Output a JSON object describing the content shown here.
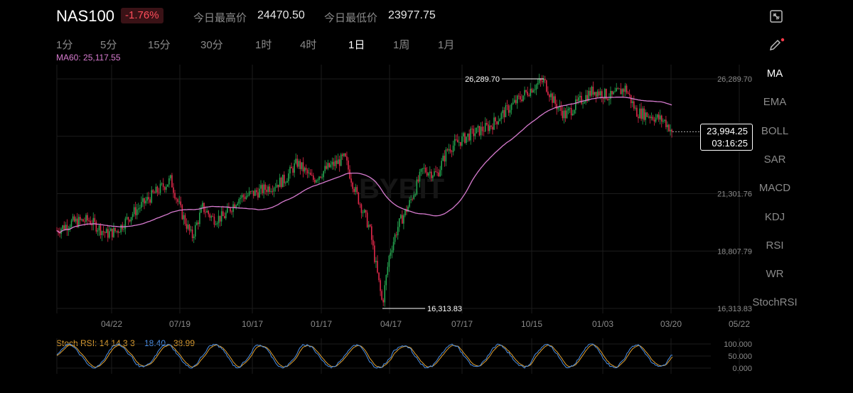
{
  "header": {
    "symbol": "NAS100",
    "change": "-1.76%",
    "high_label": "今日最高价",
    "high_value": "24470.50",
    "low_label": "今日最低价",
    "low_value": "23977.75"
  },
  "timeframes": [
    {
      "label": "1分",
      "active": false
    },
    {
      "label": "5分",
      "active": false
    },
    {
      "label": "15分",
      "active": false
    },
    {
      "label": "30分",
      "active": false
    },
    {
      "label": "1时",
      "active": false
    },
    {
      "label": "4时",
      "active": false
    },
    {
      "label": "1日",
      "active": true
    },
    {
      "label": "1周",
      "active": false
    },
    {
      "label": "1月",
      "active": false
    }
  ],
  "ma_label": "MA60: 25,117.55",
  "indicators": [
    {
      "label": "MA",
      "active": true
    },
    {
      "label": "EMA",
      "active": false
    },
    {
      "label": "BOLL",
      "active": false
    },
    {
      "label": "SAR",
      "active": false
    },
    {
      "label": "MACD",
      "active": false
    },
    {
      "label": "KDJ",
      "active": false
    },
    {
      "label": "RSI",
      "active": false
    },
    {
      "label": "WR",
      "active": false
    },
    {
      "label": "StochRSI",
      "active": false
    }
  ],
  "price_tag": {
    "price": "23,994.25",
    "countdown": "03:16:25"
  },
  "watermark": "BYBIT",
  "chart_data": {
    "type": "candlestick",
    "y_ticks": [
      "26,289.70",
      "21,301.76",
      "18,807.79",
      "16,313.83"
    ],
    "x_ticks": [
      "04/22",
      "07/19",
      "10/17",
      "01/17",
      "04/17",
      "07/17",
      "10/15",
      "01/03",
      "03/20",
      "05/22"
    ],
    "ylim": [
      16313.83,
      26289.7
    ],
    "high_marker": "26,289.70",
    "low_marker": "16,313.83",
    "last_price": 23994.25,
    "ma_period": 60,
    "colors": {
      "up": "#25a750",
      "down": "#e0294a",
      "ma": "#d77bcf",
      "grid": "#1c1c1c"
    }
  },
  "stoch_rsi": {
    "label": "Stoch RSI: 14 14 3 3",
    "k_value": "18.40",
    "d_value": "38.99",
    "y_ticks": [
      "100.000",
      "50.000",
      "0.000"
    ],
    "k_color": "#4a8fe7",
    "d_color": "#e0a030"
  }
}
